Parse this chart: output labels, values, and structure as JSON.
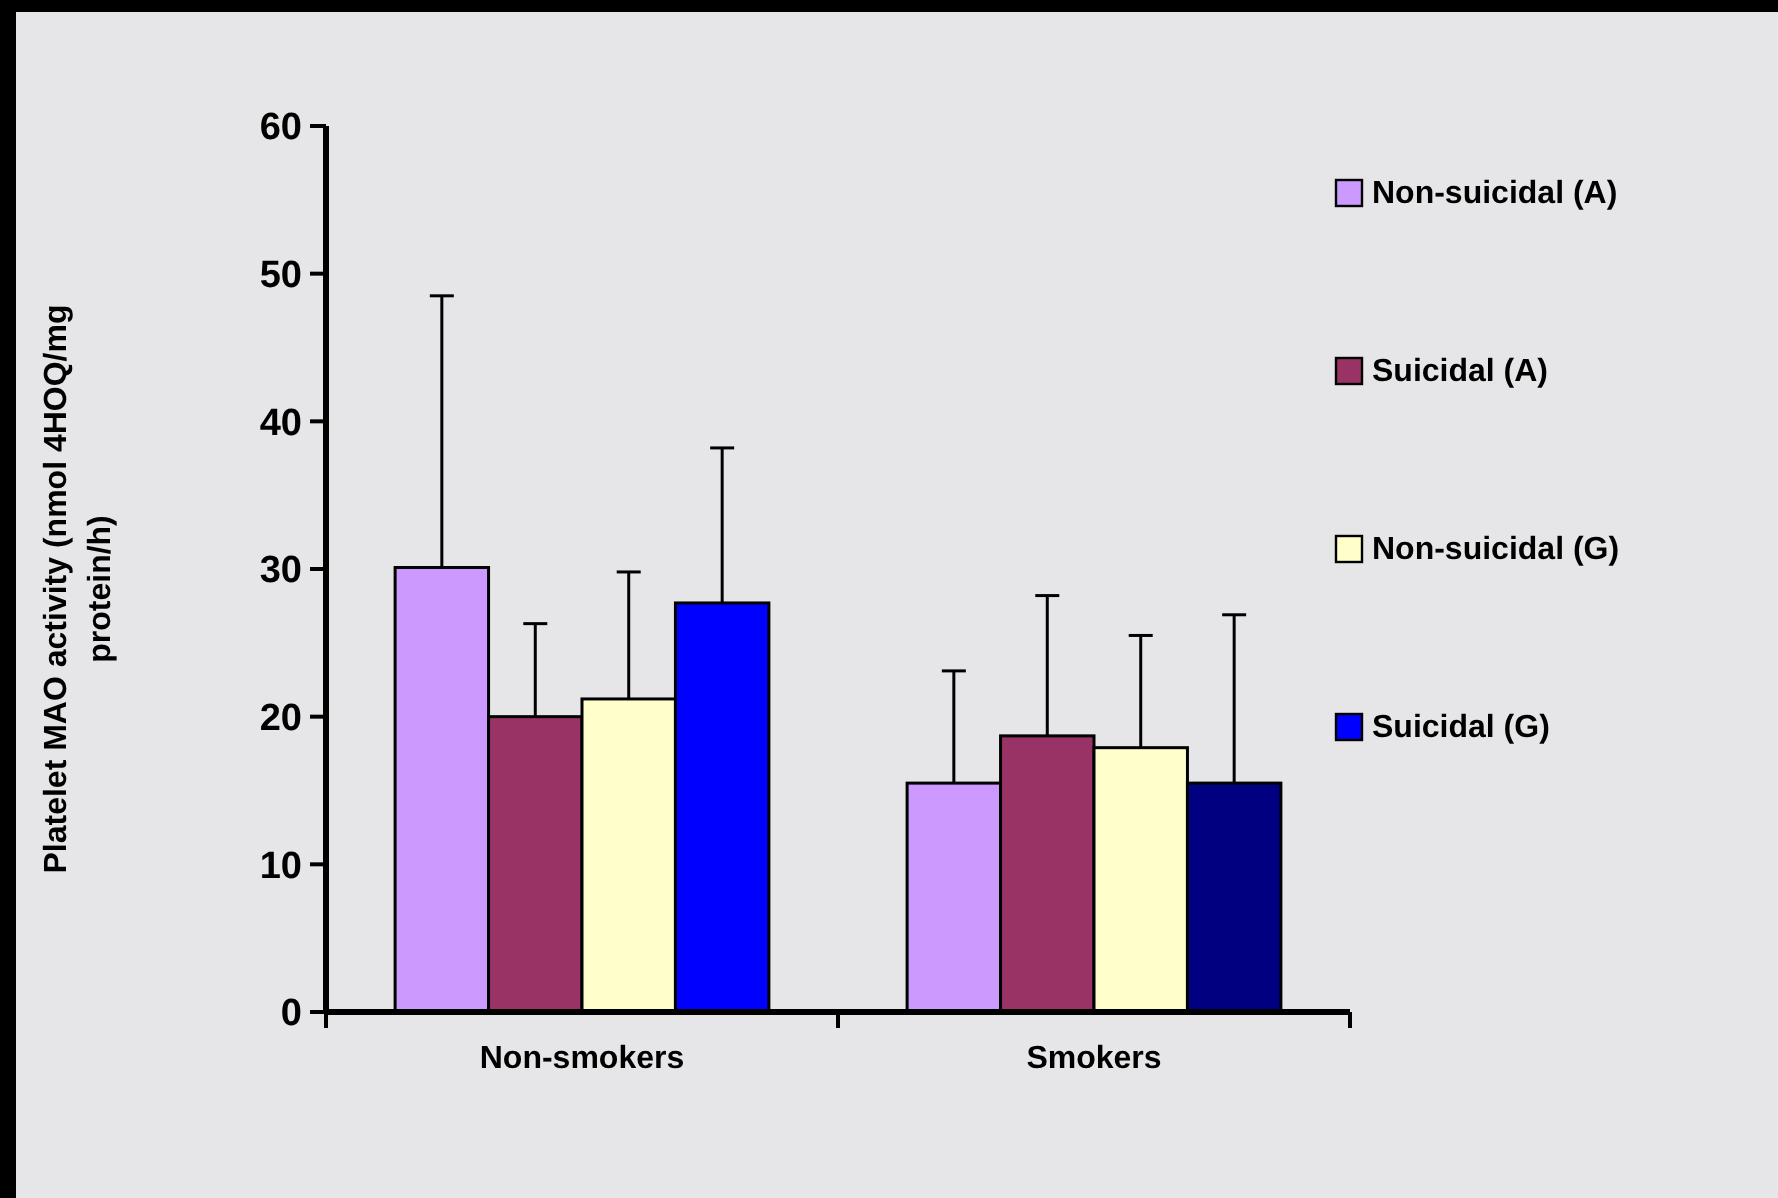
{
  "chart_data": {
    "type": "bar",
    "ylabel": "Platelet MAO activity (nmol 4HOQ/mg protein/h)",
    "categories": [
      "Non-smokers",
      "Smokers"
    ],
    "series": [
      {
        "name": "Non-suicidal (A)",
        "color": "#cc99ff",
        "values": [
          30.1,
          15.5
        ],
        "errors": [
          18.4,
          7.6
        ]
      },
      {
        "name": "Suicidal (A)",
        "color": "#993366",
        "values": [
          20.0,
          18.7
        ],
        "errors": [
          6.3,
          9.5
        ]
      },
      {
        "name": "Non-suicidal (G)",
        "color": "#ffffcc",
        "values": [
          21.2,
          17.9
        ],
        "errors": [
          8.6,
          7.6
        ]
      },
      {
        "name": "Suicidal (G)",
        "color": "#0000ff",
        "colors": [
          "#0000ff",
          "#000080"
        ],
        "values": [
          27.7,
          15.5
        ],
        "errors": [
          10.5,
          11.4
        ]
      }
    ],
    "ylim": [
      0,
      60
    ],
    "yticks": [
      0,
      10,
      20,
      30,
      40,
      50,
      60
    ],
    "grid": false,
    "legend": "right"
  }
}
